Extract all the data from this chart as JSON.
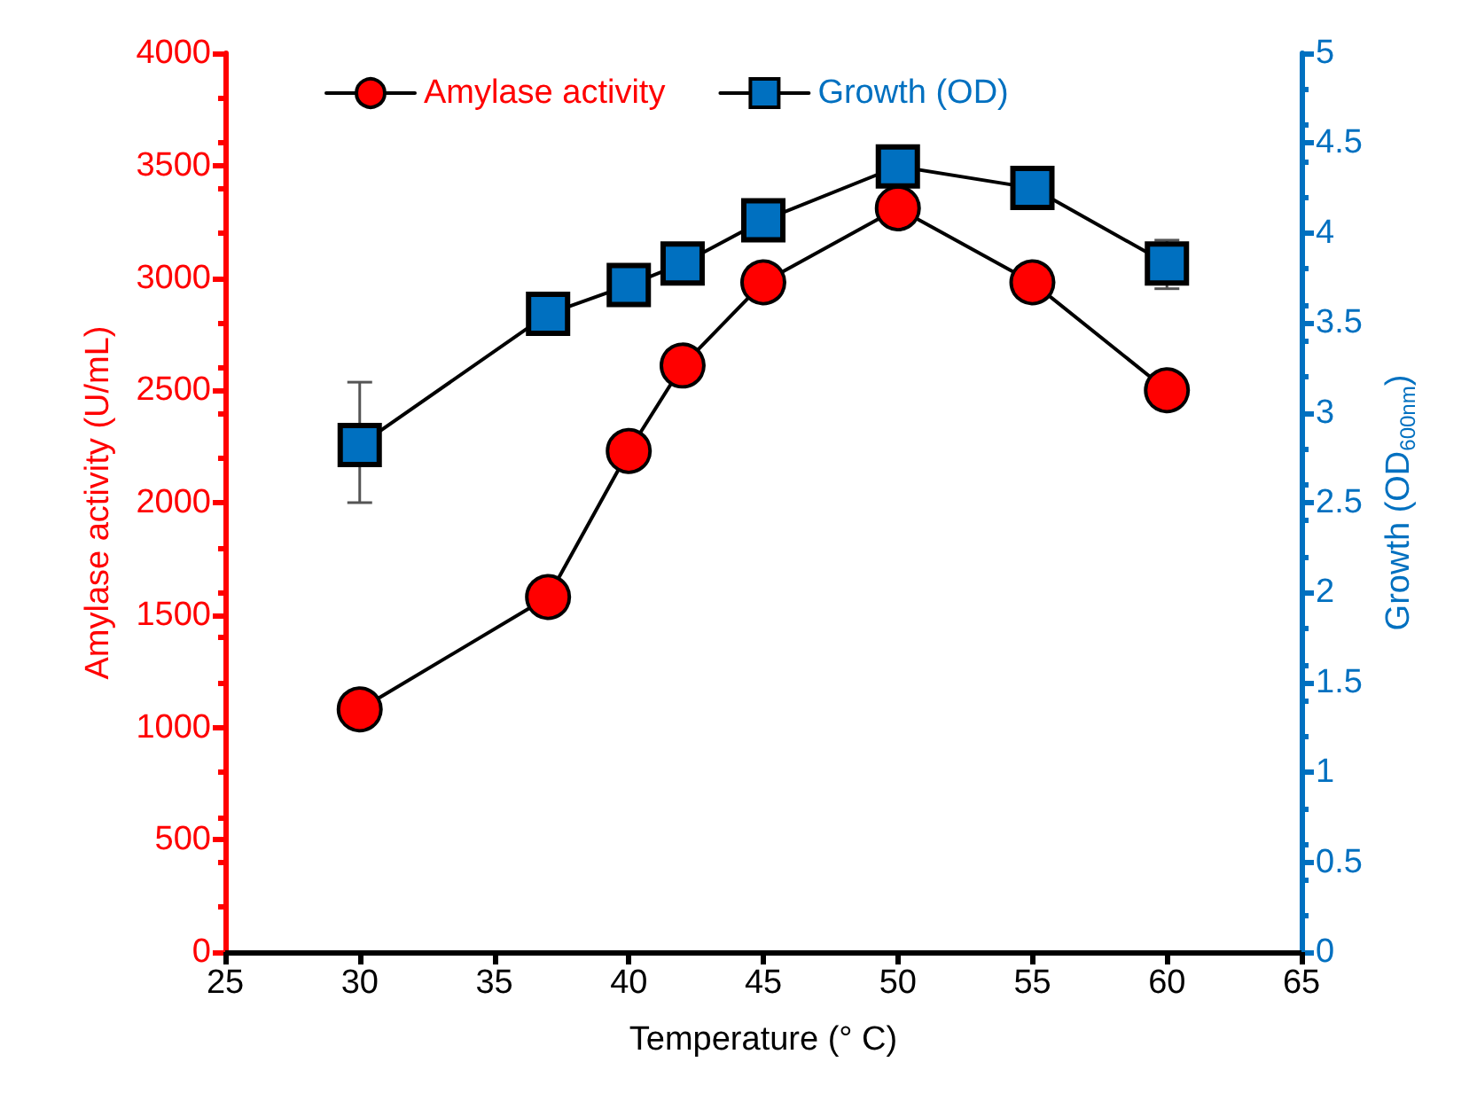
{
  "chart_data": {
    "type": "line",
    "x": [
      30,
      37,
      40,
      42,
      45,
      50,
      55,
      60
    ],
    "series": [
      {
        "name": "Amylase activity",
        "color": "#ff0000",
        "marker": "circle",
        "values": [
          1080,
          1580,
          2230,
          2610,
          2980,
          3310,
          2980,
          2500
        ]
      },
      {
        "name": "Growth (OD)",
        "color": "#0070c0",
        "marker": "square",
        "axis": "y2",
        "values": [
          2.82,
          3.55,
          3.71,
          3.83,
          4.07,
          4.37,
          4.25,
          3.83
        ],
        "errors": [
          [
            2.5,
            3.17
          ],
          null,
          null,
          null,
          null,
          null,
          null,
          [
            3.69,
            3.96
          ]
        ]
      }
    ],
    "xlabel": "Temperature (° C)",
    "ylabel": "Amylase activity (U/mL)",
    "y2label": "Growth (OD$_{600nm}$)",
    "xlim": [
      25,
      65
    ],
    "xticks": [
      25,
      30,
      35,
      40,
      45,
      50,
      55,
      60,
      65
    ],
    "ylim": [
      0,
      4000
    ],
    "yticks": [
      0,
      500,
      1000,
      1500,
      2000,
      2500,
      3000,
      3500,
      4000
    ],
    "y2lim": [
      0,
      5
    ],
    "y2ticks": [
      0,
      0.5,
      1,
      1.5,
      2,
      2.5,
      3,
      3.5,
      4,
      4.5,
      5
    ],
    "grid": false,
    "legend": "top",
    "line_style": "solid"
  }
}
